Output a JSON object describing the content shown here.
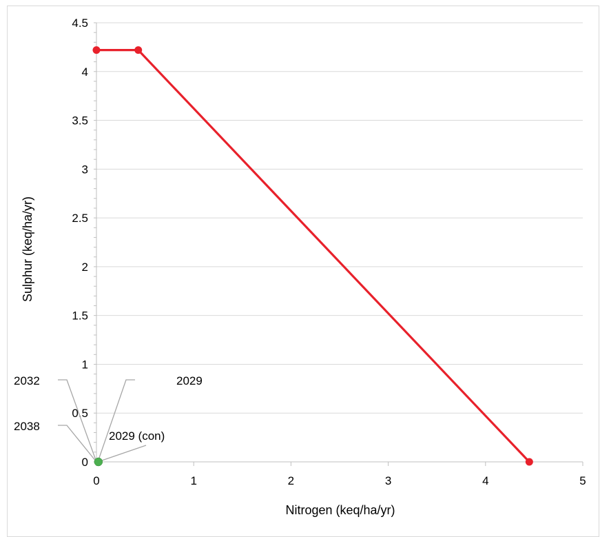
{
  "chart_data": {
    "type": "line",
    "xlabel": "Nitrogen (keq/ha/yr)",
    "ylabel": "Sulphur  (keq/ha/yr)",
    "xlim": [
      0,
      5
    ],
    "ylim": [
      0,
      4.5
    ],
    "xticks": [
      "0",
      "1",
      "2",
      "3",
      "4",
      "5"
    ],
    "yticks": [
      "0",
      "0.5",
      "1",
      "1.5",
      "2",
      "2.5",
      "3",
      "3.5",
      "4",
      "4.5"
    ],
    "grid": "horizontal",
    "series": [
      {
        "type": "line",
        "color": "#e8212b",
        "x": [
          0,
          0.43,
          4.45
        ],
        "y": [
          4.22,
          4.22,
          0
        ]
      },
      {
        "type": "scatter",
        "color": "#4caf50",
        "x": [
          0.02
        ],
        "y": [
          0
        ]
      }
    ],
    "annotations": [
      {
        "text": "2032"
      },
      {
        "text": "2038"
      },
      {
        "text": "2029"
      },
      {
        "text": "2029 (con)"
      }
    ]
  }
}
